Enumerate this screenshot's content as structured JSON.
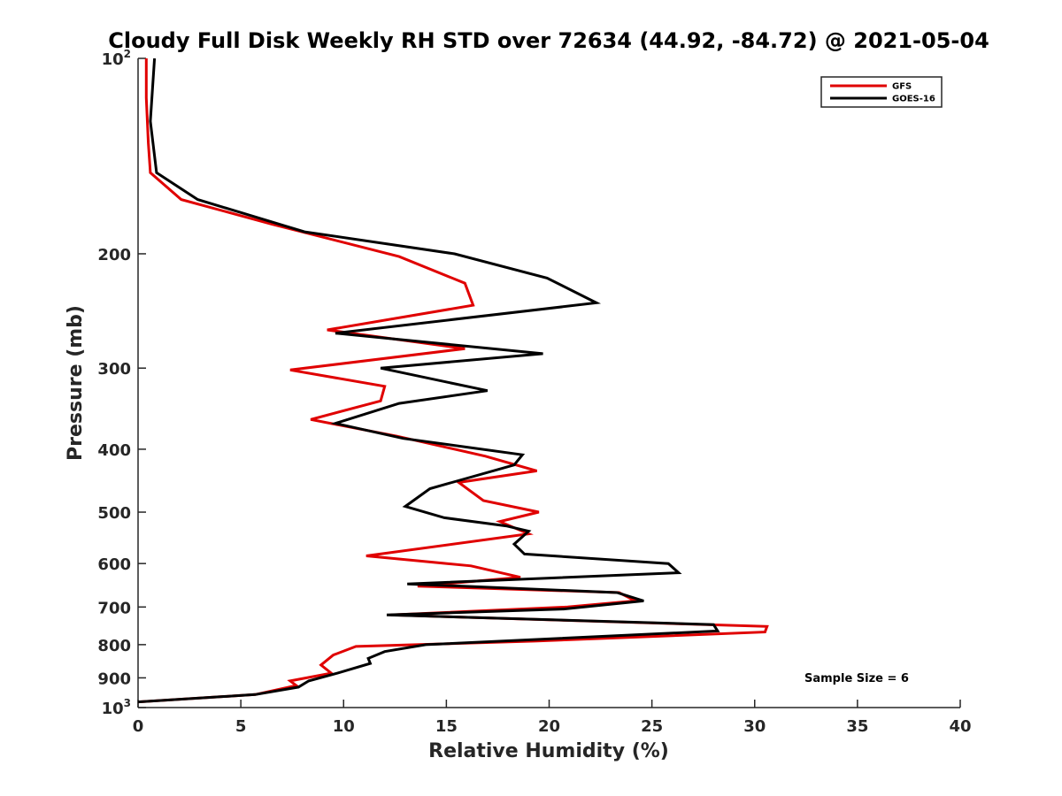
{
  "chart_data": {
    "type": "line",
    "title": "Cloudy Full Disk Weekly RH STD over 72634 (44.92, -84.72) @ 2021-05-04",
    "xlabel": "Relative Humidity (%)",
    "ylabel": "Pressure (mb)",
    "xlim": [
      0,
      40
    ],
    "ylim": [
      100,
      1000
    ],
    "y_scale": "log",
    "y_reversed": true,
    "grid": false,
    "legend_placement": "top-right",
    "x_ticks": [
      0,
      5,
      10,
      15,
      20,
      25,
      30,
      35,
      40
    ],
    "x_tick_labels": [
      "0",
      "5",
      "10",
      "15",
      "20",
      "25",
      "30",
      "35",
      "40"
    ],
    "y_ticks": [
      {
        "value": 100,
        "base": "10",
        "exp": "2"
      },
      {
        "value": 200,
        "label": "200"
      },
      {
        "value": 300,
        "label": "300"
      },
      {
        "value": 400,
        "label": "400"
      },
      {
        "value": 500,
        "label": "500"
      },
      {
        "value": 600,
        "label": "600"
      },
      {
        "value": 700,
        "label": "700"
      },
      {
        "value": 800,
        "label": "800"
      },
      {
        "value": 900,
        "label": "900"
      },
      {
        "value": 1000,
        "base": "10",
        "exp": "3"
      }
    ],
    "series": [
      {
        "name": "GFS",
        "color": "#e00000",
        "points": [
          [
            0.4,
            100
          ],
          [
            0.4,
            115
          ],
          [
            0.5,
            135
          ],
          [
            0.6,
            150
          ],
          [
            2.1,
            165
          ],
          [
            6.5,
            180
          ],
          [
            12.7,
            202
          ],
          [
            15.9,
            222
          ],
          [
            16.3,
            240
          ],
          [
            9.2,
            262
          ],
          [
            15.9,
            280
          ],
          [
            7.4,
            302
          ],
          [
            12.0,
            320
          ],
          [
            11.8,
            337
          ],
          [
            8.4,
            360
          ],
          [
            12.6,
            382
          ],
          [
            16.9,
            410
          ],
          [
            19.4,
            432
          ],
          [
            15.6,
            450
          ],
          [
            16.8,
            480
          ],
          [
            19.5,
            500
          ],
          [
            17.6,
            517
          ],
          [
            19.0,
            540
          ],
          [
            11.1,
            584
          ],
          [
            16.2,
            605
          ],
          [
            18.6,
            630
          ],
          [
            13.6,
            650
          ],
          [
            23.4,
            665
          ],
          [
            24.2,
            685
          ],
          [
            20.9,
            700
          ],
          [
            12.3,
            720
          ],
          [
            30.6,
            750
          ],
          [
            30.5,
            765
          ],
          [
            19.3,
            790
          ],
          [
            10.6,
            805
          ],
          [
            9.5,
            830
          ],
          [
            8.9,
            860
          ],
          [
            9.4,
            885
          ],
          [
            7.4,
            910
          ],
          [
            7.7,
            925
          ],
          [
            5.7,
            955
          ],
          [
            0.0,
            980
          ]
        ]
      },
      {
        "name": "GOES-16",
        "color": "#000000",
        "points": [
          [
            0.8,
            100
          ],
          [
            0.6,
            125
          ],
          [
            0.9,
            150
          ],
          [
            2.9,
            165
          ],
          [
            8.1,
            185
          ],
          [
            15.4,
            200
          ],
          [
            19.9,
            218
          ],
          [
            22.3,
            238
          ],
          [
            9.6,
            265
          ],
          [
            19.7,
            285
          ],
          [
            11.8,
            300
          ],
          [
            17.0,
            325
          ],
          [
            12.7,
            340
          ],
          [
            9.6,
            365
          ],
          [
            12.9,
            385
          ],
          [
            18.7,
            408
          ],
          [
            18.3,
            423
          ],
          [
            14.2,
            460
          ],
          [
            13.0,
            490
          ],
          [
            14.9,
            510
          ],
          [
            17.9,
            525
          ],
          [
            19.0,
            535
          ],
          [
            18.3,
            560
          ],
          [
            18.8,
            580
          ],
          [
            25.8,
            600
          ],
          [
            26.3,
            620
          ],
          [
            13.1,
            645
          ],
          [
            23.3,
            665
          ],
          [
            24.6,
            685
          ],
          [
            20.7,
            705
          ],
          [
            12.1,
            720
          ],
          [
            28.0,
            745
          ],
          [
            28.2,
            762
          ],
          [
            14.0,
            800
          ],
          [
            12.0,
            820
          ],
          [
            11.2,
            840
          ],
          [
            11.3,
            855
          ],
          [
            9.7,
            885
          ],
          [
            8.3,
            910
          ],
          [
            7.8,
            930
          ],
          [
            5.7,
            955
          ],
          [
            0.0,
            980
          ]
        ]
      }
    ],
    "annotations": [
      "Sample Size = 6"
    ]
  }
}
